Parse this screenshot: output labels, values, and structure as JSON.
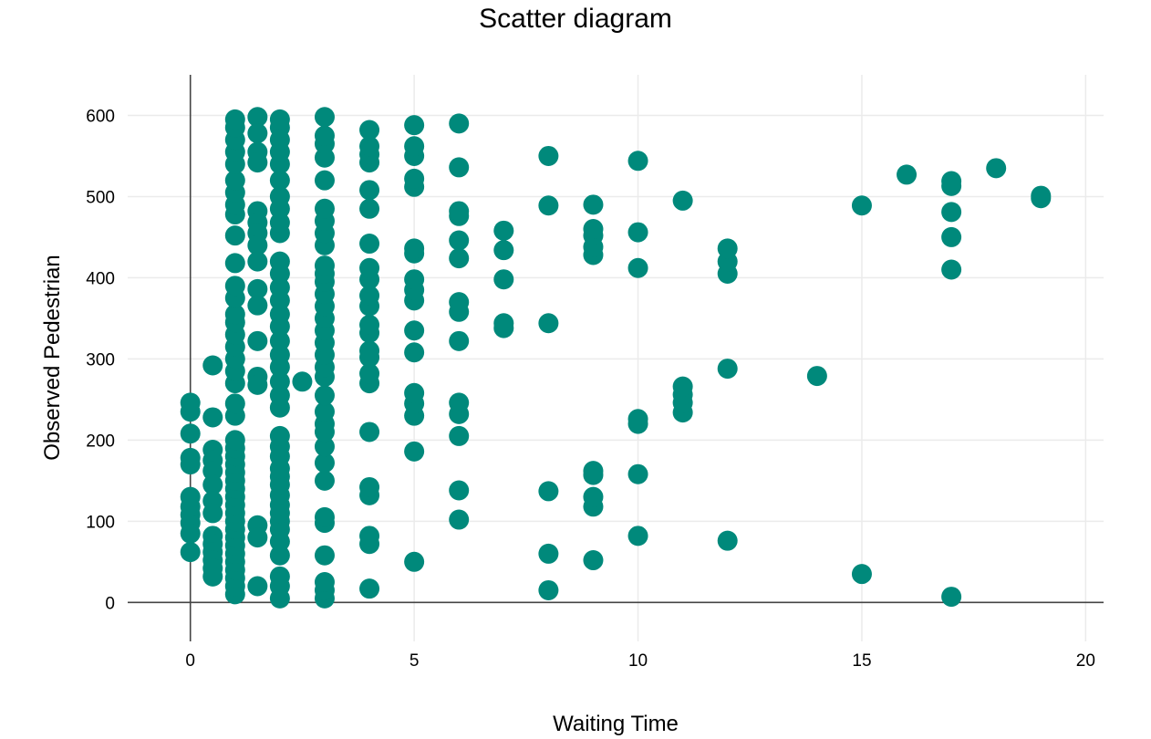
{
  "chart_data": {
    "type": "scatter",
    "title": "Scatter diagram",
    "xlabel": "Waiting Time",
    "ylabel": "Observed Pedestrian",
    "xlim": [
      -1.4,
      20.4
    ],
    "ylim": [
      -48,
      650
    ],
    "x_ticks": [
      0,
      5,
      10,
      15,
      20
    ],
    "y_ticks": [
      0,
      100,
      200,
      300,
      400,
      500,
      600
    ],
    "grid": true,
    "marker_color": "#00897b",
    "points": [
      [
        0,
        62
      ],
      [
        0,
        85
      ],
      [
        0,
        98
      ],
      [
        0,
        108
      ],
      [
        0,
        118
      ],
      [
        0,
        130
      ],
      [
        0,
        170
      ],
      [
        0,
        178
      ],
      [
        0,
        208
      ],
      [
        0,
        235
      ],
      [
        0,
        246
      ],
      [
        0.5,
        292
      ],
      [
        0.5,
        228
      ],
      [
        0.5,
        188
      ],
      [
        0.5,
        175
      ],
      [
        0.5,
        162
      ],
      [
        0.5,
        145
      ],
      [
        0.5,
        125
      ],
      [
        0.5,
        110
      ],
      [
        0.5,
        82
      ],
      [
        0.5,
        72
      ],
      [
        0.5,
        62
      ],
      [
        0.5,
        52
      ],
      [
        0.5,
        42
      ],
      [
        0.5,
        32
      ],
      [
        1,
        10
      ],
      [
        1,
        20
      ],
      [
        1,
        30
      ],
      [
        1,
        40
      ],
      [
        1,
        50
      ],
      [
        1,
        60
      ],
      [
        1,
        70
      ],
      [
        1,
        80
      ],
      [
        1,
        90
      ],
      [
        1,
        100
      ],
      [
        1,
        110
      ],
      [
        1,
        120
      ],
      [
        1,
        130
      ],
      [
        1,
        140
      ],
      [
        1,
        150
      ],
      [
        1,
        160
      ],
      [
        1,
        170
      ],
      [
        1,
        180
      ],
      [
        1,
        190
      ],
      [
        1,
        200
      ],
      [
        1,
        230
      ],
      [
        1,
        245
      ],
      [
        1,
        270
      ],
      [
        1,
        285
      ],
      [
        1,
        300
      ],
      [
        1,
        315
      ],
      [
        1,
        330
      ],
      [
        1,
        345
      ],
      [
        1,
        355
      ],
      [
        1,
        375
      ],
      [
        1,
        390
      ],
      [
        1,
        418
      ],
      [
        1,
        452
      ],
      [
        1,
        478
      ],
      [
        1,
        490
      ],
      [
        1,
        505
      ],
      [
        1,
        520
      ],
      [
        1,
        540
      ],
      [
        1,
        555
      ],
      [
        1,
        570
      ],
      [
        1,
        585
      ],
      [
        1,
        595
      ],
      [
        1.5,
        598
      ],
      [
        1.5,
        578
      ],
      [
        1.5,
        555
      ],
      [
        1.5,
        542
      ],
      [
        1.5,
        482
      ],
      [
        1.5,
        468
      ],
      [
        1.5,
        455
      ],
      [
        1.5,
        440
      ],
      [
        1.5,
        420
      ],
      [
        1.5,
        386
      ],
      [
        1.5,
        366
      ],
      [
        1.5,
        322
      ],
      [
        1.5,
        278
      ],
      [
        1.5,
        268
      ],
      [
        1.5,
        95
      ],
      [
        1.5,
        80
      ],
      [
        1.5,
        20
      ],
      [
        2,
        5
      ],
      [
        2,
        20
      ],
      [
        2,
        32
      ],
      [
        2,
        58
      ],
      [
        2,
        75
      ],
      [
        2,
        90
      ],
      [
        2,
        100
      ],
      [
        2,
        110
      ],
      [
        2,
        120
      ],
      [
        2,
        132
      ],
      [
        2,
        145
      ],
      [
        2,
        155
      ],
      [
        2,
        165
      ],
      [
        2,
        180
      ],
      [
        2,
        192
      ],
      [
        2,
        205
      ],
      [
        2,
        240
      ],
      [
        2,
        255
      ],
      [
        2,
        272
      ],
      [
        2,
        290
      ],
      [
        2,
        305
      ],
      [
        2,
        322
      ],
      [
        2,
        340
      ],
      [
        2,
        355
      ],
      [
        2,
        372
      ],
      [
        2,
        388
      ],
      [
        2,
        405
      ],
      [
        2,
        420
      ],
      [
        2,
        455
      ],
      [
        2,
        468
      ],
      [
        2,
        485
      ],
      [
        2,
        500
      ],
      [
        2,
        520
      ],
      [
        2,
        540
      ],
      [
        2,
        555
      ],
      [
        2,
        570
      ],
      [
        2,
        585
      ],
      [
        2,
        595
      ],
      [
        2.5,
        272
      ],
      [
        3,
        5
      ],
      [
        3,
        15
      ],
      [
        3,
        25
      ],
      [
        3,
        58
      ],
      [
        3,
        98
      ],
      [
        3,
        105
      ],
      [
        3,
        150
      ],
      [
        3,
        172
      ],
      [
        3,
        192
      ],
      [
        3,
        210
      ],
      [
        3,
        220
      ],
      [
        3,
        235
      ],
      [
        3,
        255
      ],
      [
        3,
        278
      ],
      [
        3,
        290
      ],
      [
        3,
        305
      ],
      [
        3,
        320
      ],
      [
        3,
        335
      ],
      [
        3,
        350
      ],
      [
        3,
        365
      ],
      [
        3,
        380
      ],
      [
        3,
        395
      ],
      [
        3,
        405
      ],
      [
        3,
        415
      ],
      [
        3,
        440
      ],
      [
        3,
        455
      ],
      [
        3,
        470
      ],
      [
        3,
        485
      ],
      [
        3,
        520
      ],
      [
        3,
        548
      ],
      [
        3,
        565
      ],
      [
        3,
        575
      ],
      [
        3,
        598
      ],
      [
        4,
        17
      ],
      [
        4,
        72
      ],
      [
        4,
        82
      ],
      [
        4,
        132
      ],
      [
        4,
        142
      ],
      [
        4,
        210
      ],
      [
        4,
        270
      ],
      [
        4,
        282
      ],
      [
        4,
        302
      ],
      [
        4,
        310
      ],
      [
        4,
        332
      ],
      [
        4,
        342
      ],
      [
        4,
        365
      ],
      [
        4,
        378
      ],
      [
        4,
        398
      ],
      [
        4,
        412
      ],
      [
        4,
        442
      ],
      [
        4,
        485
      ],
      [
        4,
        508
      ],
      [
        4,
        542
      ],
      [
        4,
        552
      ],
      [
        4,
        562
      ],
      [
        4,
        582
      ],
      [
        5,
        50
      ],
      [
        5,
        186
      ],
      [
        5,
        230
      ],
      [
        5,
        245
      ],
      [
        5,
        258
      ],
      [
        5,
        308
      ],
      [
        5,
        335
      ],
      [
        5,
        372
      ],
      [
        5,
        385
      ],
      [
        5,
        398
      ],
      [
        5,
        430
      ],
      [
        5,
        436
      ],
      [
        5,
        512
      ],
      [
        5,
        522
      ],
      [
        5,
        550
      ],
      [
        5,
        562
      ],
      [
        5,
        588
      ],
      [
        6,
        102
      ],
      [
        6,
        138
      ],
      [
        6,
        205
      ],
      [
        6,
        232
      ],
      [
        6,
        246
      ],
      [
        6,
        322
      ],
      [
        6,
        358
      ],
      [
        6,
        370
      ],
      [
        6,
        424
      ],
      [
        6,
        446
      ],
      [
        6,
        476
      ],
      [
        6,
        482
      ],
      [
        6,
        536
      ],
      [
        6,
        590
      ],
      [
        7,
        338
      ],
      [
        7,
        344
      ],
      [
        7,
        398
      ],
      [
        7,
        434
      ],
      [
        7,
        458
      ],
      [
        8,
        15
      ],
      [
        8,
        60
      ],
      [
        8,
        137
      ],
      [
        8,
        344
      ],
      [
        8,
        489
      ],
      [
        8,
        550
      ],
      [
        9,
        52
      ],
      [
        9,
        118
      ],
      [
        9,
        130
      ],
      [
        9,
        157
      ],
      [
        9,
        162
      ],
      [
        9,
        428
      ],
      [
        9,
        438
      ],
      [
        9,
        452
      ],
      [
        9,
        460
      ],
      [
        9,
        490
      ],
      [
        10,
        82
      ],
      [
        10,
        158
      ],
      [
        10,
        220
      ],
      [
        10,
        226
      ],
      [
        10,
        412
      ],
      [
        10,
        456
      ],
      [
        10,
        544
      ],
      [
        11,
        234
      ],
      [
        11,
        246
      ],
      [
        11,
        256
      ],
      [
        11,
        266
      ],
      [
        11,
        495
      ],
      [
        12,
        76
      ],
      [
        12,
        288
      ],
      [
        12,
        405
      ],
      [
        12,
        420
      ],
      [
        12,
        436
      ],
      [
        14,
        279
      ],
      [
        15,
        35
      ],
      [
        15,
        489
      ],
      [
        16,
        527
      ],
      [
        17,
        7
      ],
      [
        17,
        410
      ],
      [
        17,
        450
      ],
      [
        17,
        481
      ],
      [
        17,
        513
      ],
      [
        17,
        519
      ],
      [
        18,
        535
      ],
      [
        19,
        498
      ],
      [
        19,
        501
      ]
    ]
  }
}
